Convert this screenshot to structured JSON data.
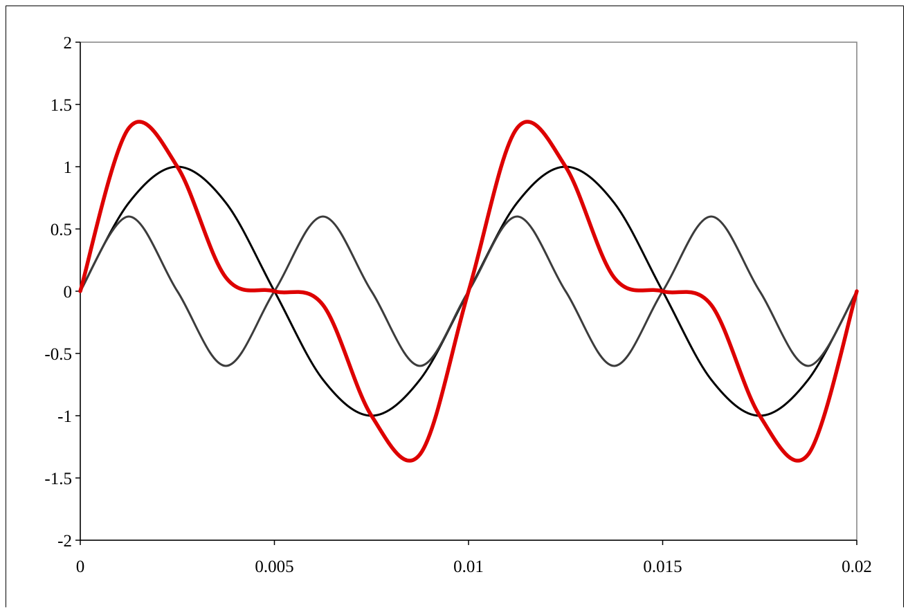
{
  "chart_data": {
    "type": "line",
    "x_tick_labels": [
      "0",
      "0.005",
      "0.01",
      "0.015",
      "0.02"
    ],
    "y_tick_labels": [
      "2",
      "1.5",
      "1",
      "0.5",
      "0",
      "-0.5",
      "-1",
      "-1.5",
      "-2"
    ],
    "xlim": [
      0,
      0.02
    ],
    "ylim": [
      -2,
      2
    ],
    "x_ticks": [
      0,
      0.005,
      0.01,
      0.015,
      0.02
    ],
    "y_ticks": [
      2,
      1.5,
      1,
      0.5,
      0,
      -0.5,
      -1,
      -1.5,
      -2
    ],
    "grid": false,
    "legend": "none",
    "sample_x": [
      0,
      0.00125,
      0.0025,
      0.00375,
      0.005,
      0.00625,
      0.0075,
      0.00875,
      0.01,
      0.01125,
      0.0125,
      0.01375,
      0.015,
      0.01625,
      0.0175,
      0.01875,
      0.02
    ],
    "series": [
      {
        "color": "#000000",
        "values": [
          0,
          0.71,
          1,
          0.71,
          0,
          -0.71,
          -1,
          -0.71,
          0,
          0.71,
          1,
          0.71,
          0,
          -0.71,
          -1,
          -0.71,
          0
        ]
      },
      {
        "color": "#3c3c3c",
        "values": [
          0,
          0.6,
          0,
          -0.6,
          0,
          0.6,
          0,
          -0.6,
          0,
          0.6,
          0,
          -0.6,
          0,
          0.6,
          0,
          -0.6,
          0
        ]
      },
      {
        "color": "#dd0000",
        "values": [
          0,
          1.31,
          1,
          0.11,
          0,
          -0.11,
          -1,
          -1.31,
          0,
          1.31,
          1,
          0.11,
          0,
          -0.11,
          -1,
          -1.31,
          0
        ]
      }
    ]
  }
}
